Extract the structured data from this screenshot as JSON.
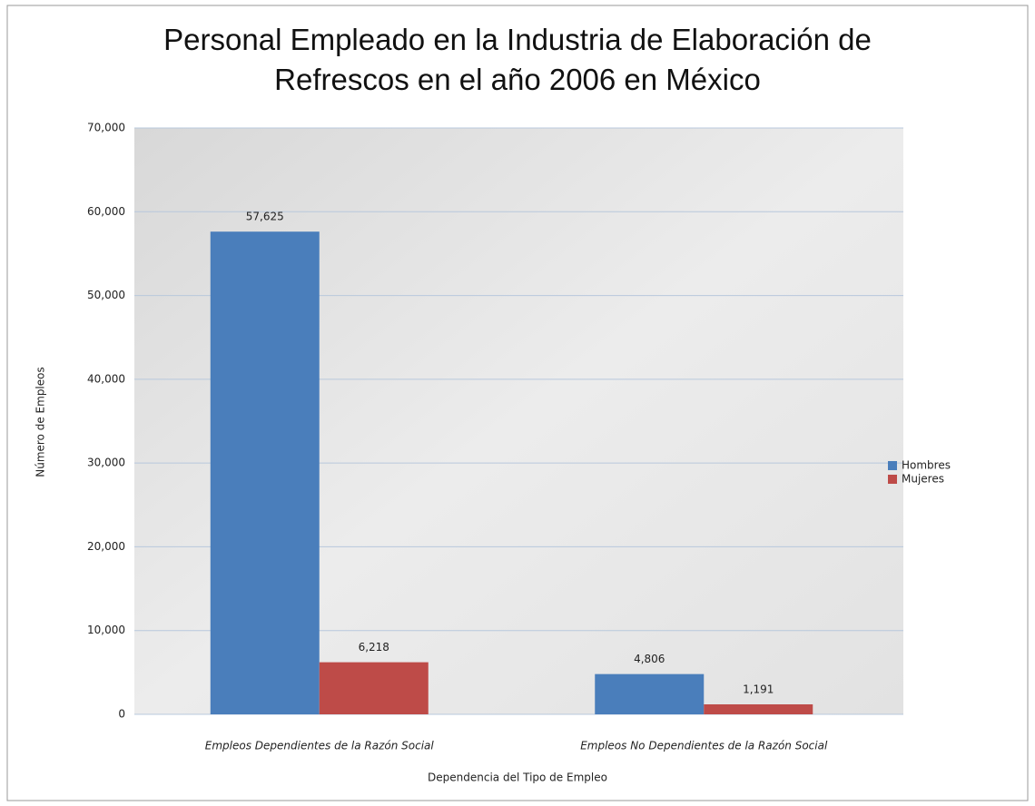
{
  "chart_data": {
    "type": "bar",
    "title": "Personal Empleado en la Industria de Elaboración de Refrescos en el año 2006 en México",
    "x_label": "Dependencia del Tipo de Empleo",
    "y_label": "Número de Empleos",
    "categories": [
      "Empleos Dependientes de la Razón Social",
      "Empleos No Dependientes de la Razón Social"
    ],
    "series": [
      {
        "name": "Hombres",
        "color": "#4a7ebb",
        "values": [
          57625,
          4806
        ],
        "value_labels": [
          "57,625",
          "4,806"
        ]
      },
      {
        "name": "Mujeres",
        "color": "#be4b48",
        "values": [
          6218,
          1191
        ],
        "value_labels": [
          "6,218",
          "1,191"
        ]
      }
    ],
    "ylim": [
      0,
      70000
    ],
    "yticks": [
      0,
      {
        "value": 10000,
        "label": "10,000"
      },
      {
        "value": 20000,
        "label": "20,000"
      },
      {
        "value": 30000,
        "label": "30,000"
      },
      {
        "value": 40000,
        "label": "40,000"
      },
      {
        "value": 50000,
        "label": "50,000"
      },
      {
        "value": 60000,
        "label": "60,000"
      },
      {
        "value": 70000,
        "label": "70,000"
      }
    ],
    "grid": true,
    "legend": "right"
  }
}
